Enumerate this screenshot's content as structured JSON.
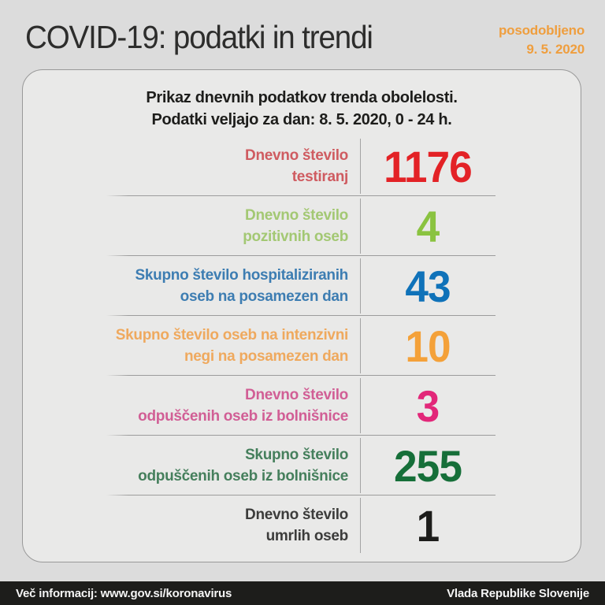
{
  "page": {
    "title": "COVID-19: podatki in trendi",
    "updated_label": "posodobljeno",
    "updated_date": "9. 5. 2020",
    "updated_color": "#ef9e3e",
    "background_color": "#dcdcdc"
  },
  "card": {
    "subtitle_line1": "Prikaz dnevnih podatkov trenda obolelosti.",
    "subtitle_line2": "Podatki veljajo za dan: 8. 5. 2020, 0 - 24 h.",
    "background_color": "#e9e9e8",
    "border_color": "#999999"
  },
  "stats": [
    {
      "line1": "Dnevno število",
      "line2": "testiranj",
      "value": "1176",
      "label_color": "#cf5b60",
      "value_color": "#e32226"
    },
    {
      "line1": "Dnevno število",
      "line2": "pozitivnih oseb",
      "value": "4",
      "label_color": "#a3c873",
      "value_color": "#8ac340"
    },
    {
      "line1": "Skupno število hospitaliziranih",
      "line2": "oseb na posamezen dan",
      "value": "43",
      "label_color": "#3d7db2",
      "value_color": "#0f72b9"
    },
    {
      "line1": "Skupno število oseb na intenzivni",
      "line2": "negi na posamezen dan",
      "value": "10",
      "label_color": "#efa95e",
      "value_color": "#f4a139"
    },
    {
      "line1": "Dnevno število",
      "line2": "odpuščenih oseb iz bolnišnice",
      "value": "3",
      "label_color": "#d15e95",
      "value_color": "#e22779"
    },
    {
      "line1": "Skupno število",
      "line2": "odpuščenih oseb iz bolnišnice",
      "value": "255",
      "label_color": "#457f5c",
      "value_color": "#166f39"
    },
    {
      "line1": "Dnevno število",
      "line2": "umrlih oseb",
      "value": "1",
      "label_color": "#3c3c3b",
      "value_color": "#1d1d1b"
    }
  ],
  "footer": {
    "left": "Več informacij: www.gov.si/koronavirus",
    "right": "Vlada Republike Slovenije"
  },
  "chart_data": {
    "type": "table",
    "title": "Prikaz dnevnih podatkov trenda obolelosti. Podatki veljajo za dan: 8. 5. 2020, 0 - 24 h.",
    "updated": "9. 5. 2020",
    "rows": [
      {
        "label": "Dnevno število testiranj",
        "value": 1176
      },
      {
        "label": "Dnevno število pozitivnih oseb",
        "value": 4
      },
      {
        "label": "Skupno število hospitaliziranih oseb na posamezen dan",
        "value": 43
      },
      {
        "label": "Skupno število oseb na intenzivni negi na posamezen dan",
        "value": 10
      },
      {
        "label": "Dnevno število odpuščenih oseb iz bolnišnice",
        "value": 3
      },
      {
        "label": "Skupno število odpuščenih oseb iz bolnišnice",
        "value": 255
      },
      {
        "label": "Dnevno število umrlih oseb",
        "value": 1
      }
    ]
  }
}
